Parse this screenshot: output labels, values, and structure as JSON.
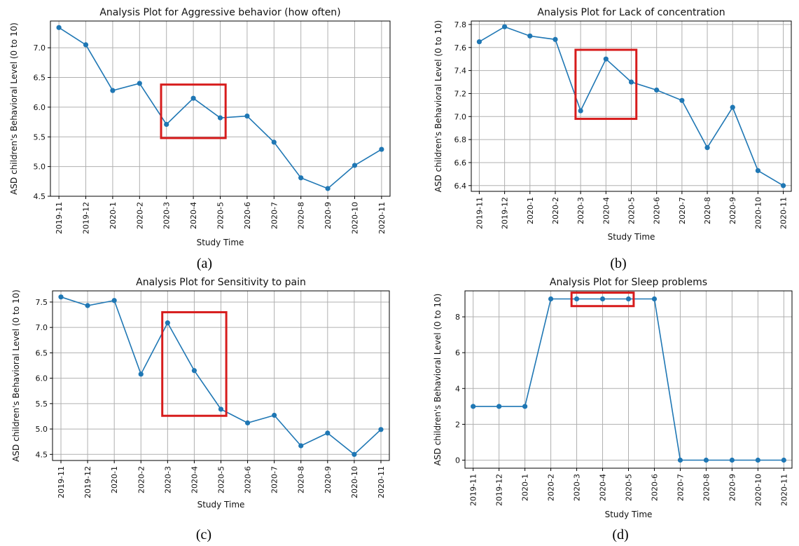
{
  "chart_data": [
    {
      "type": "line",
      "panel_label": "(a)",
      "title": "Analysis Plot for Aggressive behavior (how often)",
      "xlabel": "Study Time",
      "ylabel": "ASD children's Behavioral Level (0 to 10)",
      "categories": [
        "2019-11",
        "2019-12",
        "2020-1",
        "2020-2",
        "2020-3",
        "2020-4",
        "2020-5",
        "2020-6",
        "2020-7",
        "2020-8",
        "2020-9",
        "2020-10",
        "2020-11"
      ],
      "values": [
        7.34,
        7.05,
        6.28,
        6.4,
        5.71,
        6.15,
        5.82,
        5.85,
        5.41,
        4.81,
        4.63,
        5.02,
        5.29
      ],
      "ylim": [
        4.5,
        7.45
      ],
      "yticks": [
        "4.5",
        "5.0",
        "5.5",
        "6.0",
        "6.5",
        "7.0"
      ],
      "grid": true,
      "highlight": {
        "categories": [
          "2020-3",
          "2020-5"
        ],
        "yrange": [
          5.48,
          6.38
        ]
      },
      "color": "#1f77b4",
      "highlight_color": "#d71c1c"
    },
    {
      "type": "line",
      "panel_label": "(b)",
      "title": "Analysis Plot for Lack of concentration",
      "xlabel": "Study Time",
      "ylabel": "ASD children's Behavioral Level (0 to 10)",
      "categories": [
        "2019-11",
        "2019-12",
        "2020-1",
        "2020-2",
        "2020-3",
        "2020-4",
        "2020-5",
        "2020-6",
        "2020-7",
        "2020-8",
        "2020-9",
        "2020-10",
        "2020-11"
      ],
      "values": [
        7.65,
        7.78,
        7.7,
        7.67,
        7.05,
        7.5,
        7.3,
        7.23,
        7.14,
        6.73,
        7.08,
        6.53,
        6.4
      ],
      "ylim": [
        6.35,
        7.83
      ],
      "yticks": [
        "6.4",
        "6.6",
        "6.8",
        "7.0",
        "7.2",
        "7.4",
        "7.6",
        "7.8"
      ],
      "grid": true,
      "highlight": {
        "categories": [
          "2020-3",
          "2020-5"
        ],
        "yrange": [
          6.98,
          7.58
        ]
      },
      "color": "#1f77b4",
      "highlight_color": "#d71c1c"
    },
    {
      "type": "line",
      "panel_label": "(c)",
      "title": "Analysis Plot for Sensitivity to pain",
      "xlabel": "Study Time",
      "ylabel": "ASD children's Behavioral Level (0 to 10)",
      "categories": [
        "2019-11",
        "2019-12",
        "2020-1",
        "2020-2",
        "2020-3",
        "2020-4",
        "2020-5",
        "2020-6",
        "2020-7",
        "2020-8",
        "2020-9",
        "2020-10",
        "2020-11"
      ],
      "values": [
        7.6,
        7.43,
        7.53,
        6.08,
        7.09,
        6.15,
        5.39,
        5.12,
        5.27,
        4.67,
        4.92,
        4.5,
        4.99
      ],
      "ylim": [
        4.38,
        7.72
      ],
      "yticks": [
        "4.5",
        "5.0",
        "5.5",
        "6.0",
        "6.5",
        "7.0",
        "7.5"
      ],
      "grid": true,
      "highlight": {
        "categories": [
          "2020-3",
          "2020-5"
        ],
        "yrange": [
          5.26,
          7.3
        ]
      },
      "color": "#1f77b4",
      "highlight_color": "#d71c1c"
    },
    {
      "type": "line",
      "panel_label": "(d)",
      "title": "Analysis Plot for Sleep problems",
      "xlabel": "Study Time",
      "ylabel": "ASD children's Behavioral Level (0 to 10)",
      "categories": [
        "2019-11",
        "2019-12",
        "2020-1",
        "2020-2",
        "2020-3",
        "2020-4",
        "2020-5",
        "2020-6",
        "2020-7",
        "2020-8",
        "2020-9",
        "2020-10",
        "2020-11"
      ],
      "values": [
        3,
        3,
        3,
        9,
        9,
        9,
        9,
        9,
        0,
        0,
        0,
        0,
        0
      ],
      "ylim": [
        -0.45,
        9.45
      ],
      "yticks": [
        "0",
        "2",
        "4",
        "6",
        "8"
      ],
      "grid": true,
      "highlight": {
        "categories": [
          "2020-3",
          "2020-5"
        ],
        "yrange": [
          8.6,
          9.35
        ]
      },
      "color": "#1f77b4",
      "highlight_color": "#d71c1c"
    }
  ]
}
